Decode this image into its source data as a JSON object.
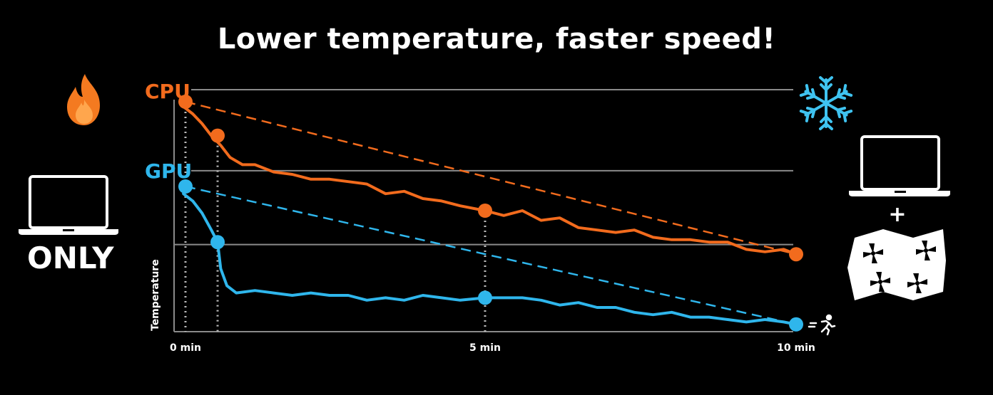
{
  "title": "Lower temperature, faster speed!",
  "left_caption": "ONLY",
  "right_plus": "+",
  "icons": {
    "heat": "flame-icon",
    "cool": "snowflake-icon",
    "device_left": "laptop-icon",
    "device_right": "laptop-icon",
    "cooler": "cooling-pad-icon",
    "speed": "runner-icon"
  },
  "colors": {
    "cpu": "#f26b1d",
    "gpu": "#2fb6ec",
    "grid": "#8a8a8a",
    "background": "#000000",
    "flame": "#f47a20",
    "snow": "#3fc3f0"
  },
  "chart_data": {
    "type": "line",
    "title": "Lower temperature, faster speed!",
    "xlabel": "",
    "ylabel": "Temperature",
    "xlim": [
      0,
      10
    ],
    "x_ticks": [
      {
        "value": 0,
        "label": "0 min"
      },
      {
        "value": 5,
        "label": "5 min"
      },
      {
        "value": 10,
        "label": "10 min"
      }
    ],
    "ylim": [
      0,
      100
    ],
    "grid": "horizontal",
    "gridlines_y": [
      66.5,
      36
    ],
    "series": [
      {
        "name": "CPU",
        "style": "solid",
        "x": [
          0,
          0.15,
          0.3,
          0.45,
          0.6,
          0.75,
          0.9,
          1.1,
          1.3,
          1.6,
          1.9,
          2.2,
          2.5,
          2.8,
          3.1,
          3.4,
          3.7,
          4.0,
          4.3,
          4.6,
          5.0,
          5.3,
          5.6,
          5.9,
          6.2,
          6.5,
          6.8,
          7.1,
          7.4,
          7.7,
          8.0,
          8.3,
          8.6,
          8.9,
          9.2,
          9.5,
          9.8,
          10
        ],
        "y": [
          95,
          93,
          90,
          86,
          81,
          77,
          72,
          69,
          69,
          66,
          65,
          63,
          63,
          62,
          61,
          57,
          58,
          55,
          54,
          52,
          50,
          48,
          50,
          46,
          47,
          43,
          42,
          41,
          42,
          39,
          38,
          38,
          37,
          37,
          34,
          33,
          34,
          32
        ]
      },
      {
        "name": "GPU",
        "style": "solid",
        "x": [
          0,
          0.15,
          0.3,
          0.45,
          0.6,
          0.7,
          0.75,
          0.85,
          1.0,
          1.3,
          1.6,
          1.9,
          2.2,
          2.5,
          2.8,
          3.1,
          3.4,
          3.7,
          4.0,
          4.3,
          4.6,
          5.0,
          5.3,
          5.6,
          5.9,
          6.2,
          6.5,
          6.8,
          7.1,
          7.4,
          7.7,
          8.0,
          8.3,
          8.6,
          8.9,
          9.2,
          9.5,
          9.8,
          10
        ],
        "y": [
          60,
          57,
          54,
          49,
          42,
          37,
          26,
          19,
          16,
          17,
          16,
          15,
          16,
          15,
          15,
          13,
          14,
          13,
          15,
          14,
          13,
          14,
          14,
          14,
          13,
          11,
          12,
          10,
          10,
          8,
          7,
          8,
          6,
          6,
          5,
          4,
          5,
          4,
          3
        ]
      },
      {
        "name": "CPU trend",
        "style": "dashed",
        "x": [
          0,
          10
        ],
        "y": [
          95,
          32
        ]
      },
      {
        "name": "GPU trend",
        "style": "dashed",
        "x": [
          0,
          10
        ],
        "y": [
          60,
          3
        ]
      }
    ],
    "highlight_points": [
      {
        "series": "CPU",
        "x": 0,
        "y": 95
      },
      {
        "series": "CPU",
        "x": 0.7,
        "y": 81
      },
      {
        "series": "CPU",
        "x": 5,
        "y": 50
      },
      {
        "series": "CPU",
        "x": 10,
        "y": 32
      },
      {
        "series": "GPU",
        "x": 0,
        "y": 60
      },
      {
        "series": "GPU",
        "x": 0.7,
        "y": 37
      },
      {
        "series": "GPU",
        "x": 5,
        "y": 14
      },
      {
        "series": "GPU",
        "x": 10,
        "y": 3
      }
    ],
    "reference_lines_x": [
      0,
      0.7,
      5
    ]
  }
}
